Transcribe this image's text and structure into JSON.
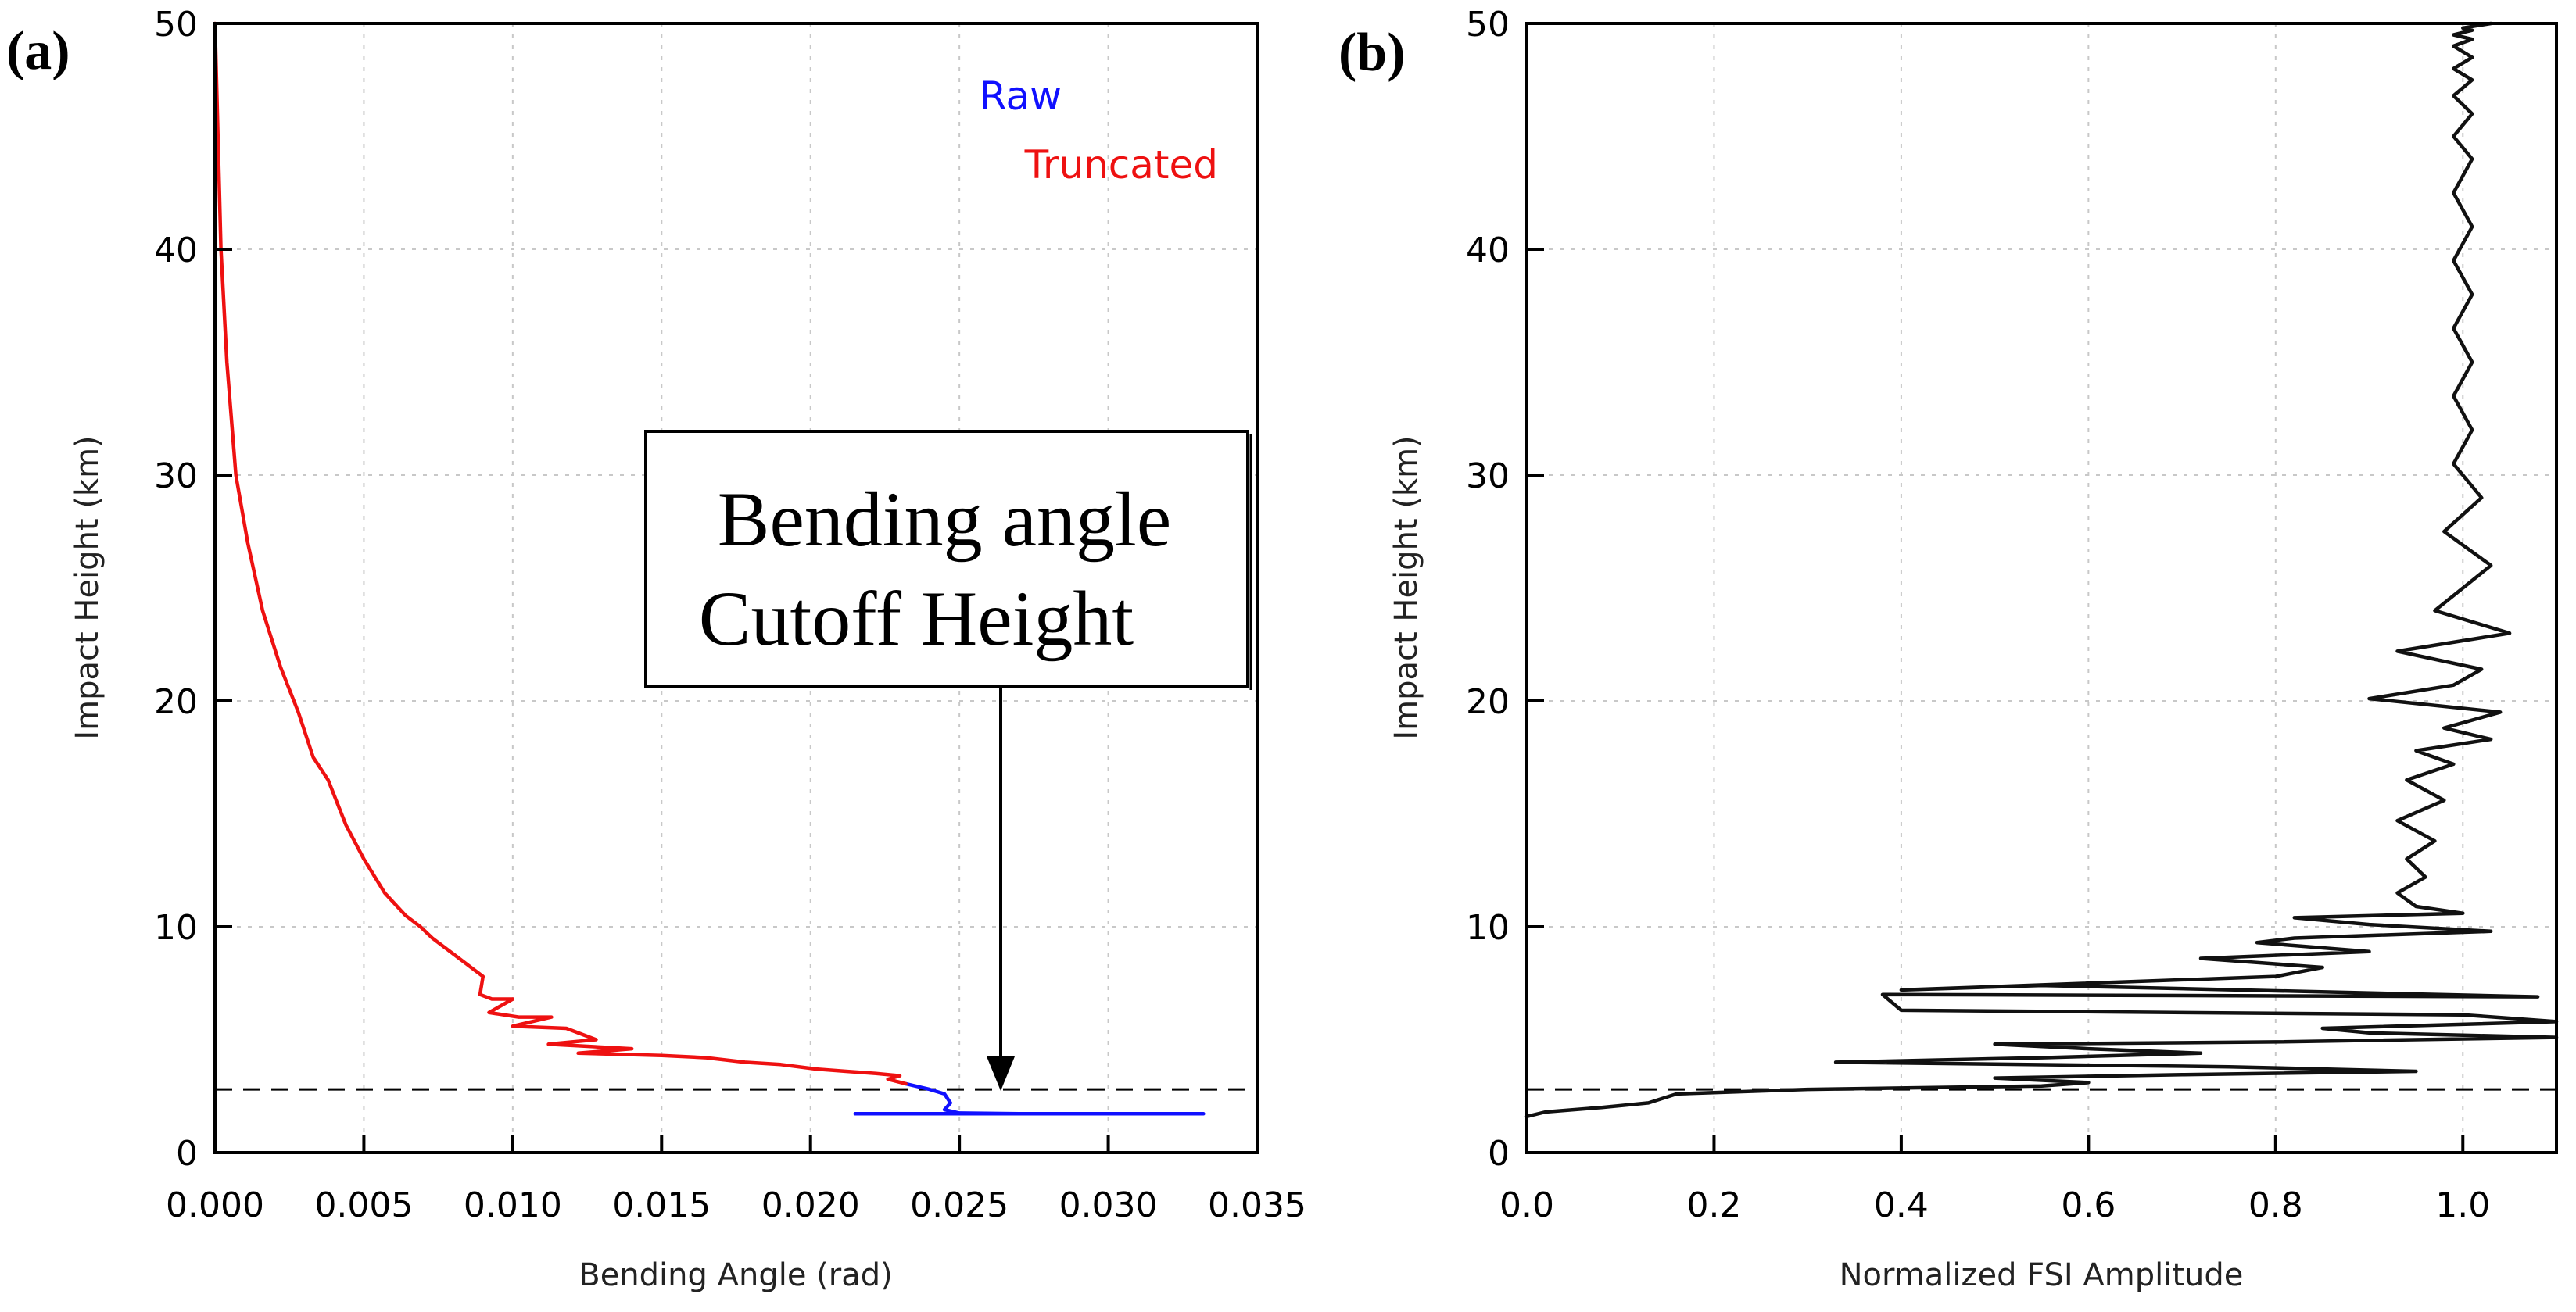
{
  "panel_a_label": "(a)",
  "panel_b_label": "(b)",
  "annotation": {
    "line1": "Bending angle",
    "line2": "Cutoff Height"
  },
  "colors": {
    "raw": "#1010ff",
    "truncated": "#ee1111",
    "fsi": "#111111"
  },
  "chart_data": [
    {
      "type": "line",
      "title": "",
      "xlabel": "Bending Angle (rad)",
      "ylabel": "Impact Height (km)",
      "xlim": [
        0,
        0.035
      ],
      "ylim": [
        0,
        50
      ],
      "xticks": [
        "0.000",
        "0.005",
        "0.010",
        "0.015",
        "0.020",
        "0.025",
        "0.030",
        "0.035"
      ],
      "xtick_values": [
        0,
        0.005,
        0.01,
        0.015,
        0.02,
        0.025,
        0.03,
        0.035
      ],
      "yticks": [
        "0",
        "10",
        "20",
        "30",
        "40",
        "50"
      ],
      "ytick_values": [
        0,
        10,
        20,
        30,
        40,
        50
      ],
      "grid": true,
      "legend": {
        "position": "top-right",
        "entries": [
          "Raw",
          "Truncated"
        ]
      },
      "cutoff_height": 2.8,
      "series": [
        {
          "name": "Raw",
          "x": [
            0.0232,
            0.024,
            0.0245,
            0.0246,
            0.0247,
            0.0246,
            0.0245,
            0.025,
            0.027,
            0.03,
            0.0332,
            0.03,
            0.026,
            0.023,
            0.0215
          ],
          "y": [
            3.05,
            2.8,
            2.6,
            2.4,
            2.2,
            2.05,
            1.9,
            1.75,
            1.72,
            1.72,
            1.72,
            1.72,
            1.72,
            1.72,
            1.72
          ]
        },
        {
          "name": "Truncated",
          "x": [
            0.0,
            0.0001,
            0.0002,
            0.0004,
            0.0007,
            0.0011,
            0.0016,
            0.0022,
            0.0028,
            0.0033,
            0.0038,
            0.0044,
            0.005,
            0.0057,
            0.0064,
            0.0069,
            0.0073,
            0.008,
            0.0086,
            0.009,
            0.0089,
            0.0093,
            0.01,
            0.0092,
            0.0102,
            0.0113,
            0.01,
            0.0118,
            0.0128,
            0.0112,
            0.014,
            0.0122,
            0.015,
            0.0165,
            0.0178,
            0.019,
            0.0202,
            0.0212,
            0.0222,
            0.023,
            0.0226,
            0.0232
          ],
          "y": [
            50,
            45,
            40,
            35,
            30,
            27,
            24,
            21.5,
            19.5,
            17.5,
            16.5,
            14.5,
            13,
            11.5,
            10.5,
            10,
            9.5,
            8.8,
            8.2,
            7.8,
            7.0,
            6.8,
            6.8,
            6.2,
            6.0,
            6.0,
            5.6,
            5.5,
            5.0,
            4.8,
            4.6,
            4.4,
            4.3,
            4.2,
            4.0,
            3.9,
            3.7,
            3.6,
            3.5,
            3.4,
            3.25,
            3.05
          ]
        }
      ]
    },
    {
      "type": "line",
      "title": "",
      "xlabel": "Normalized FSI Amplitude",
      "ylabel": "Impact Height (km)",
      "xlim": [
        0,
        1.1
      ],
      "ylim": [
        0,
        50
      ],
      "xticks": [
        "0.0",
        "0.2",
        "0.4",
        "0.6",
        "0.8",
        "1.0"
      ],
      "xtick_values": [
        0,
        0.2,
        0.4,
        0.6,
        0.8,
        1.0
      ],
      "yticks": [
        "0",
        "10",
        "20",
        "30",
        "40",
        "50"
      ],
      "ytick_values": [
        0,
        10,
        20,
        30,
        40,
        50
      ],
      "grid": true,
      "cutoff_height": 2.8,
      "series": [
        {
          "name": "FSI Amplitude",
          "x": [
            0.0,
            0.02,
            0.08,
            0.13,
            0.16,
            0.3,
            0.55,
            0.6,
            0.55,
            0.5,
            0.7,
            0.95,
            0.75,
            0.33,
            0.55,
            0.72,
            0.6,
            0.5,
            0.8,
            1.1,
            0.9,
            0.85,
            1.1,
            1.0,
            0.4,
            0.38,
            1.08,
            0.55,
            0.4,
            0.8,
            0.85,
            0.72,
            0.9,
            0.78,
            0.82,
            1.03,
            0.9,
            0.82,
            1.0,
            0.95,
            0.93,
            0.96,
            0.94,
            0.97,
            0.93,
            0.98,
            0.94,
            0.99,
            0.95,
            1.03,
            0.98,
            1.04,
            0.9,
            0.99,
            1.02,
            0.93,
            1.05,
            0.97,
            1.0,
            1.03,
            0.98,
            1.02,
            0.99,
            1.01,
            0.99,
            1.01,
            0.99,
            1.01,
            0.99,
            1.01,
            0.99,
            1.01,
            0.99,
            1.01,
            0.99,
            1.01,
            0.99,
            1.01,
            0.99,
            1.01,
            0.99,
            1.01,
            1.0,
            1.03
          ],
          "y": [
            1.6,
            1.8,
            2.0,
            2.2,
            2.6,
            2.8,
            2.95,
            3.1,
            3.2,
            3.3,
            3.45,
            3.6,
            3.8,
            4.0,
            4.2,
            4.4,
            4.6,
            4.8,
            4.9,
            5.1,
            5.3,
            5.5,
            5.8,
            6.1,
            6.3,
            7.0,
            6.9,
            7.4,
            7.2,
            7.8,
            8.2,
            8.6,
            8.9,
            9.3,
            9.5,
            9.8,
            10.1,
            10.4,
            10.6,
            10.9,
            11.5,
            12.2,
            13.0,
            13.8,
            14.7,
            15.6,
            16.5,
            17.2,
            17.8,
            18.3,
            18.8,
            19.5,
            20.1,
            20.7,
            21.4,
            22.2,
            23.0,
            24.0,
            25.0,
            26.0,
            27.5,
            29.0,
            30.5,
            32.0,
            33.5,
            35.0,
            36.5,
            38.0,
            39.5,
            41.0,
            42.5,
            44.0,
            45.0,
            46.0,
            46.8,
            47.5,
            48.0,
            48.5,
            49.0,
            49.3,
            49.5,
            49.7,
            49.8,
            50.0
          ]
        }
      ]
    }
  ]
}
